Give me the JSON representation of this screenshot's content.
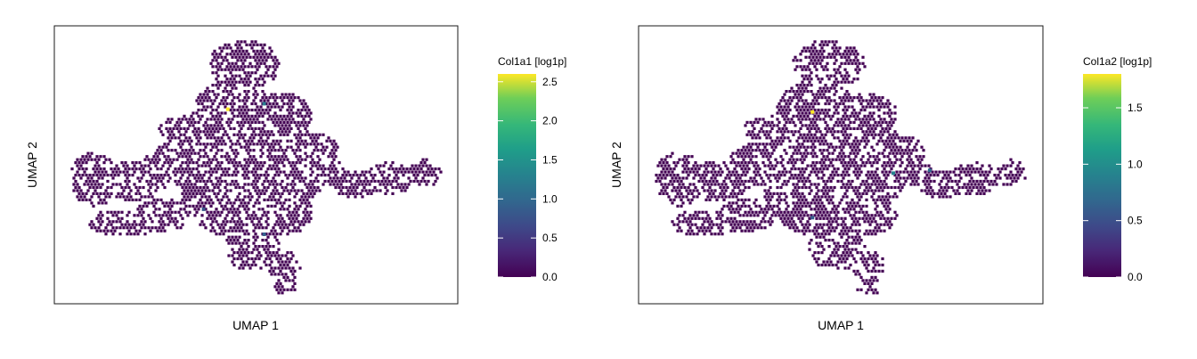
{
  "chart_data": [
    {
      "type": "scatter",
      "title": "",
      "xlabel": "UMAP 1",
      "ylabel": "UMAP 2",
      "colorbar": {
        "label": "Col1a1 [log1p]",
        "colormap": "viridis",
        "range": [
          0.0,
          2.6
        ],
        "ticks": [
          0.0,
          0.5,
          1.0,
          1.5,
          2.0,
          2.5
        ],
        "tick_labels": [
          "0.0",
          "0.5",
          "1.0",
          "1.5",
          "2.0",
          "2.5"
        ]
      },
      "points_description": "hexbin-style UMAP embedding; nearly all cells at 0.0 (dark purple), few blue/teal cells",
      "highlights": [
        {
          "x": 0.43,
          "y": 0.7,
          "value": 2.6
        },
        {
          "x": 0.52,
          "y": 0.72,
          "value": 1.2
        },
        {
          "x": 0.37,
          "y": 0.34,
          "value": 0.8
        },
        {
          "x": 0.52,
          "y": 0.25,
          "value": 0.9
        }
      ],
      "ticks_visible": false,
      "grid": false
    },
    {
      "type": "scatter",
      "title": "",
      "xlabel": "UMAP 1",
      "ylabel": "UMAP 2",
      "colorbar": {
        "label": "Col1a2 [log1p]",
        "colormap": "viridis",
        "range": [
          0.0,
          1.8
        ],
        "ticks": [
          0.0,
          0.5,
          1.0,
          1.5
        ],
        "tick_labels": [
          "0.0",
          "0.5",
          "1.0",
          "1.5"
        ]
      },
      "points_description": "hexbin-style UMAP embedding; nearly all cells at 0.0 (dark purple), few blue/teal cells",
      "highlights": [
        {
          "x": 0.43,
          "y": 0.69,
          "value": 1.8
        },
        {
          "x": 0.63,
          "y": 0.47,
          "value": 0.9
        },
        {
          "x": 0.43,
          "y": 0.31,
          "value": 0.6
        },
        {
          "x": 0.72,
          "y": 0.48,
          "value": 0.7
        }
      ],
      "ticks_visible": false,
      "grid": false
    }
  ],
  "colors": {
    "viridis_low": "#440154",
    "viridis_high": "#fde725",
    "frame": "#1a1a1a"
  }
}
